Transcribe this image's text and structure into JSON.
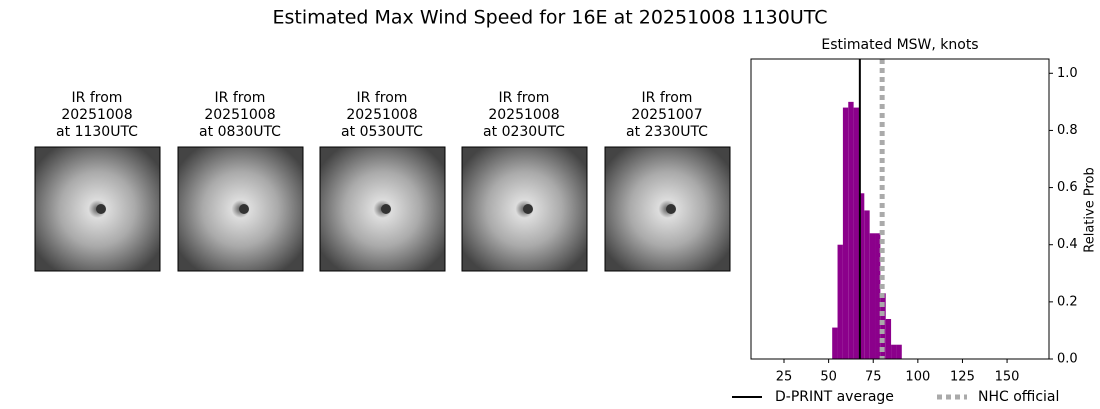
{
  "title": "Estimated Max Wind Speed for 16E at 20251008 1130UTC",
  "panels": [
    {
      "lines": [
        "IR from",
        "20251008",
        "at 1130UTC"
      ]
    },
    {
      "lines": [
        "IR from",
        "20251008",
        "at 0830UTC"
      ]
    },
    {
      "lines": [
        "IR from",
        "20251008",
        "at 0530UTC"
      ]
    },
    {
      "lines": [
        "IR from",
        "20251008",
        "at 0230UTC"
      ]
    },
    {
      "lines": [
        "IR from",
        "20251007",
        "at 2330UTC"
      ]
    }
  ],
  "chart_data": {
    "type": "histogram",
    "title": "Estimated MSW, knots",
    "y_label": "Relative Prob",
    "bins": [
      52,
      55,
      58,
      61,
      64,
      67,
      70,
      73,
      76,
      79,
      82,
      85,
      88,
      91
    ],
    "values": [
      0.11,
      0.4,
      0.88,
      0.9,
      0.88,
      0.58,
      0.52,
      0.44,
      0.44,
      0.23,
      0.14,
      0.05,
      0.05
    ],
    "color": "#8b008b",
    "xlim": [
      6.5,
      173.5
    ],
    "xticks": [
      25,
      50,
      75,
      100,
      125,
      150
    ],
    "ylim": [
      0,
      1.05
    ],
    "yticks": [
      {
        "value": 0,
        "label": "0.0"
      },
      0.2,
      0.4,
      0.6,
      0.8,
      {
        "value": 1,
        "label": "1.0"
      }
    ],
    "dprint_average": 67.5,
    "nhc_official": 80,
    "legend": [
      "D-PRINT average",
      "NHC official"
    ]
  }
}
